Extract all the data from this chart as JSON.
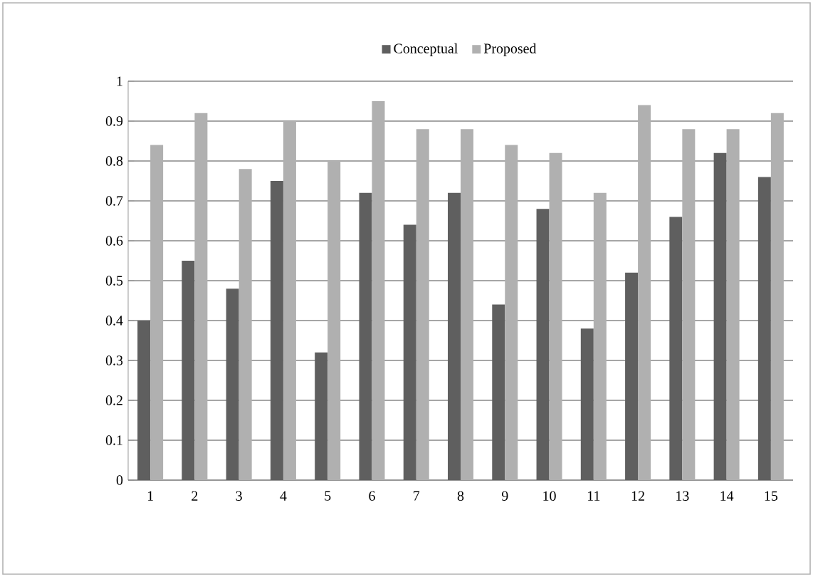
{
  "chart_data": {
    "type": "bar",
    "categories": [
      "1",
      "2",
      "3",
      "4",
      "5",
      "6",
      "7",
      "8",
      "9",
      "10",
      "11",
      "12",
      "13",
      "14",
      "15"
    ],
    "series": [
      {
        "name": "Conceptual",
        "color": "#5f5f5f",
        "values": [
          0.4,
          0.55,
          0.48,
          0.75,
          0.32,
          0.72,
          0.64,
          0.72,
          0.44,
          0.68,
          0.38,
          0.52,
          0.66,
          0.82,
          0.76
        ]
      },
      {
        "name": "Proposed",
        "color": "#b0b0b0",
        "values": [
          0.84,
          0.92,
          0.78,
          0.9,
          0.8,
          0.95,
          0.88,
          0.88,
          0.84,
          0.82,
          0.72,
          0.94,
          0.88,
          0.88,
          0.92
        ]
      }
    ],
    "ylim": [
      0,
      1
    ],
    "yticks": [
      0,
      0.1,
      0.2,
      0.3,
      0.4,
      0.5,
      0.6,
      0.7,
      0.8,
      0.9,
      1
    ],
    "grid": "y",
    "legend": "top"
  }
}
